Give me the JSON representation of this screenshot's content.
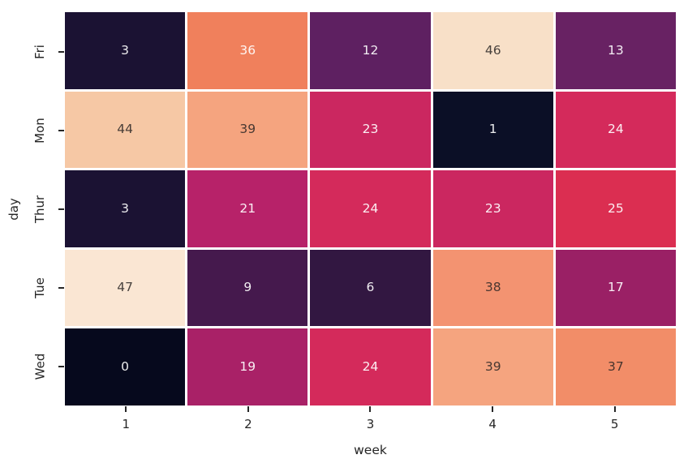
{
  "chart_data": {
    "type": "heatmap",
    "title": "",
    "xlabel": "week",
    "ylabel": "day",
    "x_ticklabels": [
      "1",
      "2",
      "3",
      "4",
      "5"
    ],
    "y_ticklabels": [
      "Fri",
      "Mon",
      "Thur",
      "Tue",
      "Wed"
    ],
    "values": [
      [
        3,
        36,
        12,
        46,
        13
      ],
      [
        44,
        39,
        23,
        1,
        24
      ],
      [
        3,
        21,
        24,
        23,
        25
      ],
      [
        47,
        9,
        6,
        38,
        17
      ],
      [
        0,
        19,
        24,
        39,
        37
      ]
    ],
    "vmin": 0,
    "vmax": 47,
    "colormap": "rocket",
    "annotated": true,
    "grid": "off",
    "legend": "none"
  },
  "style": {
    "value_colors": {
      "0": "#06091D",
      "1": "#0B0F26",
      "3": "#1B1233",
      "6": "#321741",
      "9": "#45194D",
      "12": "#5E2061",
      "13": "#682263",
      "17": "#9A2065",
      "19": "#A92167",
      "21": "#B72269",
      "23": "#CB2760",
      "24": "#D42A5B",
      "25": "#DB2E51",
      "36": "#F0805C",
      "37": "#F28D68",
      "38": "#F39371",
      "39": "#F5A47F",
      "44": "#F6C8A5",
      "46": "#F8E0C8",
      "47": "#FAE6D3"
    },
    "light_text": "rgba(255,255,255,0.92)",
    "dark_text": "rgba(42,38,36,0.85)",
    "dark_text_threshold": 37,
    "axis_text_color": "#262626",
    "background": "#ffffff",
    "cell_gap_color": "#ffffff"
  }
}
